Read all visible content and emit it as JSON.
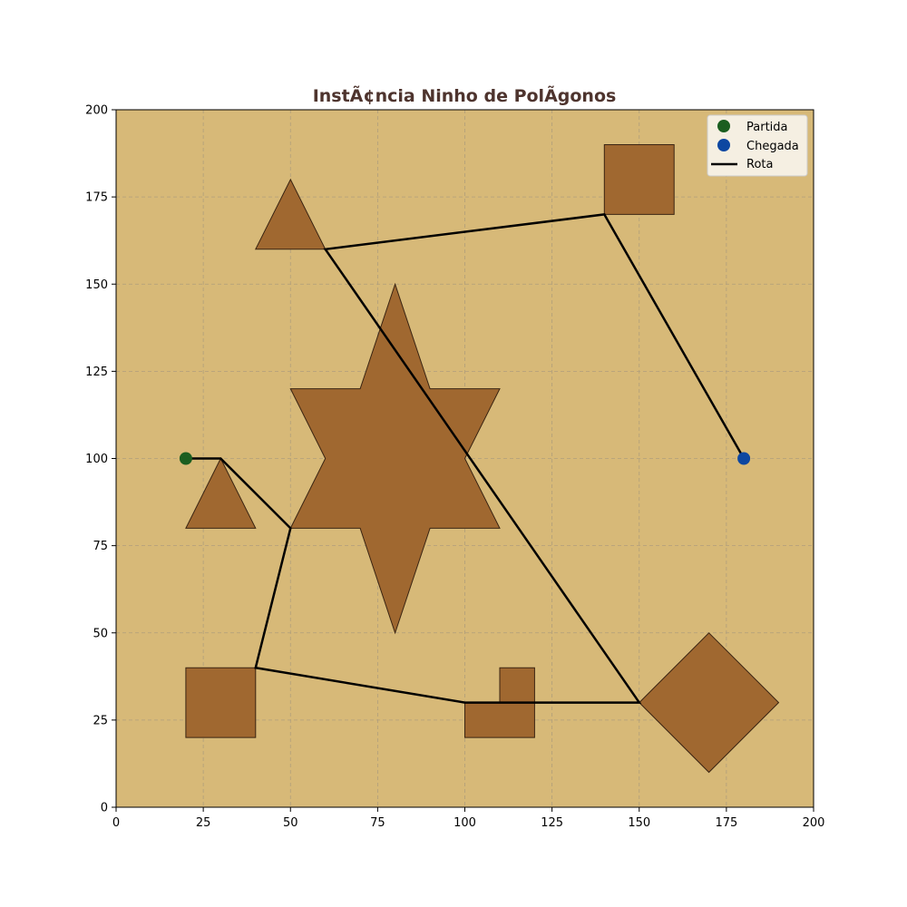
{
  "chart_data": {
    "type": "scatter",
    "title": "InstÃ¢ncia Ninho de PolÃ­gonos",
    "xlim": [
      0,
      200
    ],
    "ylim": [
      0,
      200
    ],
    "x_ticks": [
      0,
      25,
      50,
      75,
      100,
      125,
      150,
      175,
      200
    ],
    "y_ticks": [
      0,
      25,
      50,
      75,
      100,
      125,
      150,
      175,
      200
    ],
    "grid": true,
    "legend_placement": "top-right",
    "colors": {
      "background": "#d7b978",
      "obstacle_fill": "#a06830",
      "obstacle_edge": "#3a2412",
      "start": "#1b5e20",
      "goal": "#0d47a1",
      "route": "#000000",
      "title": "#4e342e",
      "grid": "#b09e7c",
      "legend_bg": "#f5efe2"
    },
    "obstacles": [
      {
        "name": "triangle-top-left",
        "points": [
          [
            40,
            160
          ],
          [
            60,
            160
          ],
          [
            50,
            180
          ]
        ]
      },
      {
        "name": "square-top-right",
        "points": [
          [
            140,
            170
          ],
          [
            160,
            170
          ],
          [
            160,
            190
          ],
          [
            140,
            190
          ]
        ]
      },
      {
        "name": "star-center",
        "points": [
          [
            80,
            150
          ],
          [
            90,
            120
          ],
          [
            110,
            120
          ],
          [
            100,
            100
          ],
          [
            110,
            80
          ],
          [
            90,
            80
          ],
          [
            80,
            50
          ],
          [
            70,
            80
          ],
          [
            50,
            80
          ],
          [
            60,
            100
          ],
          [
            50,
            120
          ],
          [
            70,
            120
          ]
        ]
      },
      {
        "name": "triangle-left",
        "points": [
          [
            20,
            80
          ],
          [
            40,
            80
          ],
          [
            30,
            100
          ]
        ]
      },
      {
        "name": "square-bottom-left",
        "points": [
          [
            20,
            20
          ],
          [
            40,
            20
          ],
          [
            40,
            40
          ],
          [
            20,
            40
          ]
        ]
      },
      {
        "name": "l-shape-bottom",
        "points": [
          [
            100,
            20
          ],
          [
            120,
            20
          ],
          [
            120,
            40
          ],
          [
            110,
            40
          ],
          [
            110,
            30
          ],
          [
            100,
            30
          ]
        ]
      },
      {
        "name": "diamond-bottom-right",
        "points": [
          [
            150,
            30
          ],
          [
            170,
            10
          ],
          [
            190,
            30
          ],
          [
            170,
            50
          ]
        ]
      }
    ],
    "start": {
      "name": "Partida",
      "x": 20,
      "y": 100
    },
    "goal": {
      "name": "Chegada",
      "x": 180,
      "y": 100
    },
    "route": {
      "name": "Rota",
      "points": [
        [
          20,
          100
        ],
        [
          30,
          100
        ],
        [
          50,
          80
        ],
        [
          40,
          40
        ],
        [
          100,
          30
        ],
        [
          150,
          30
        ],
        [
          60,
          160
        ],
        [
          140,
          170
        ],
        [
          180,
          100
        ]
      ]
    }
  }
}
